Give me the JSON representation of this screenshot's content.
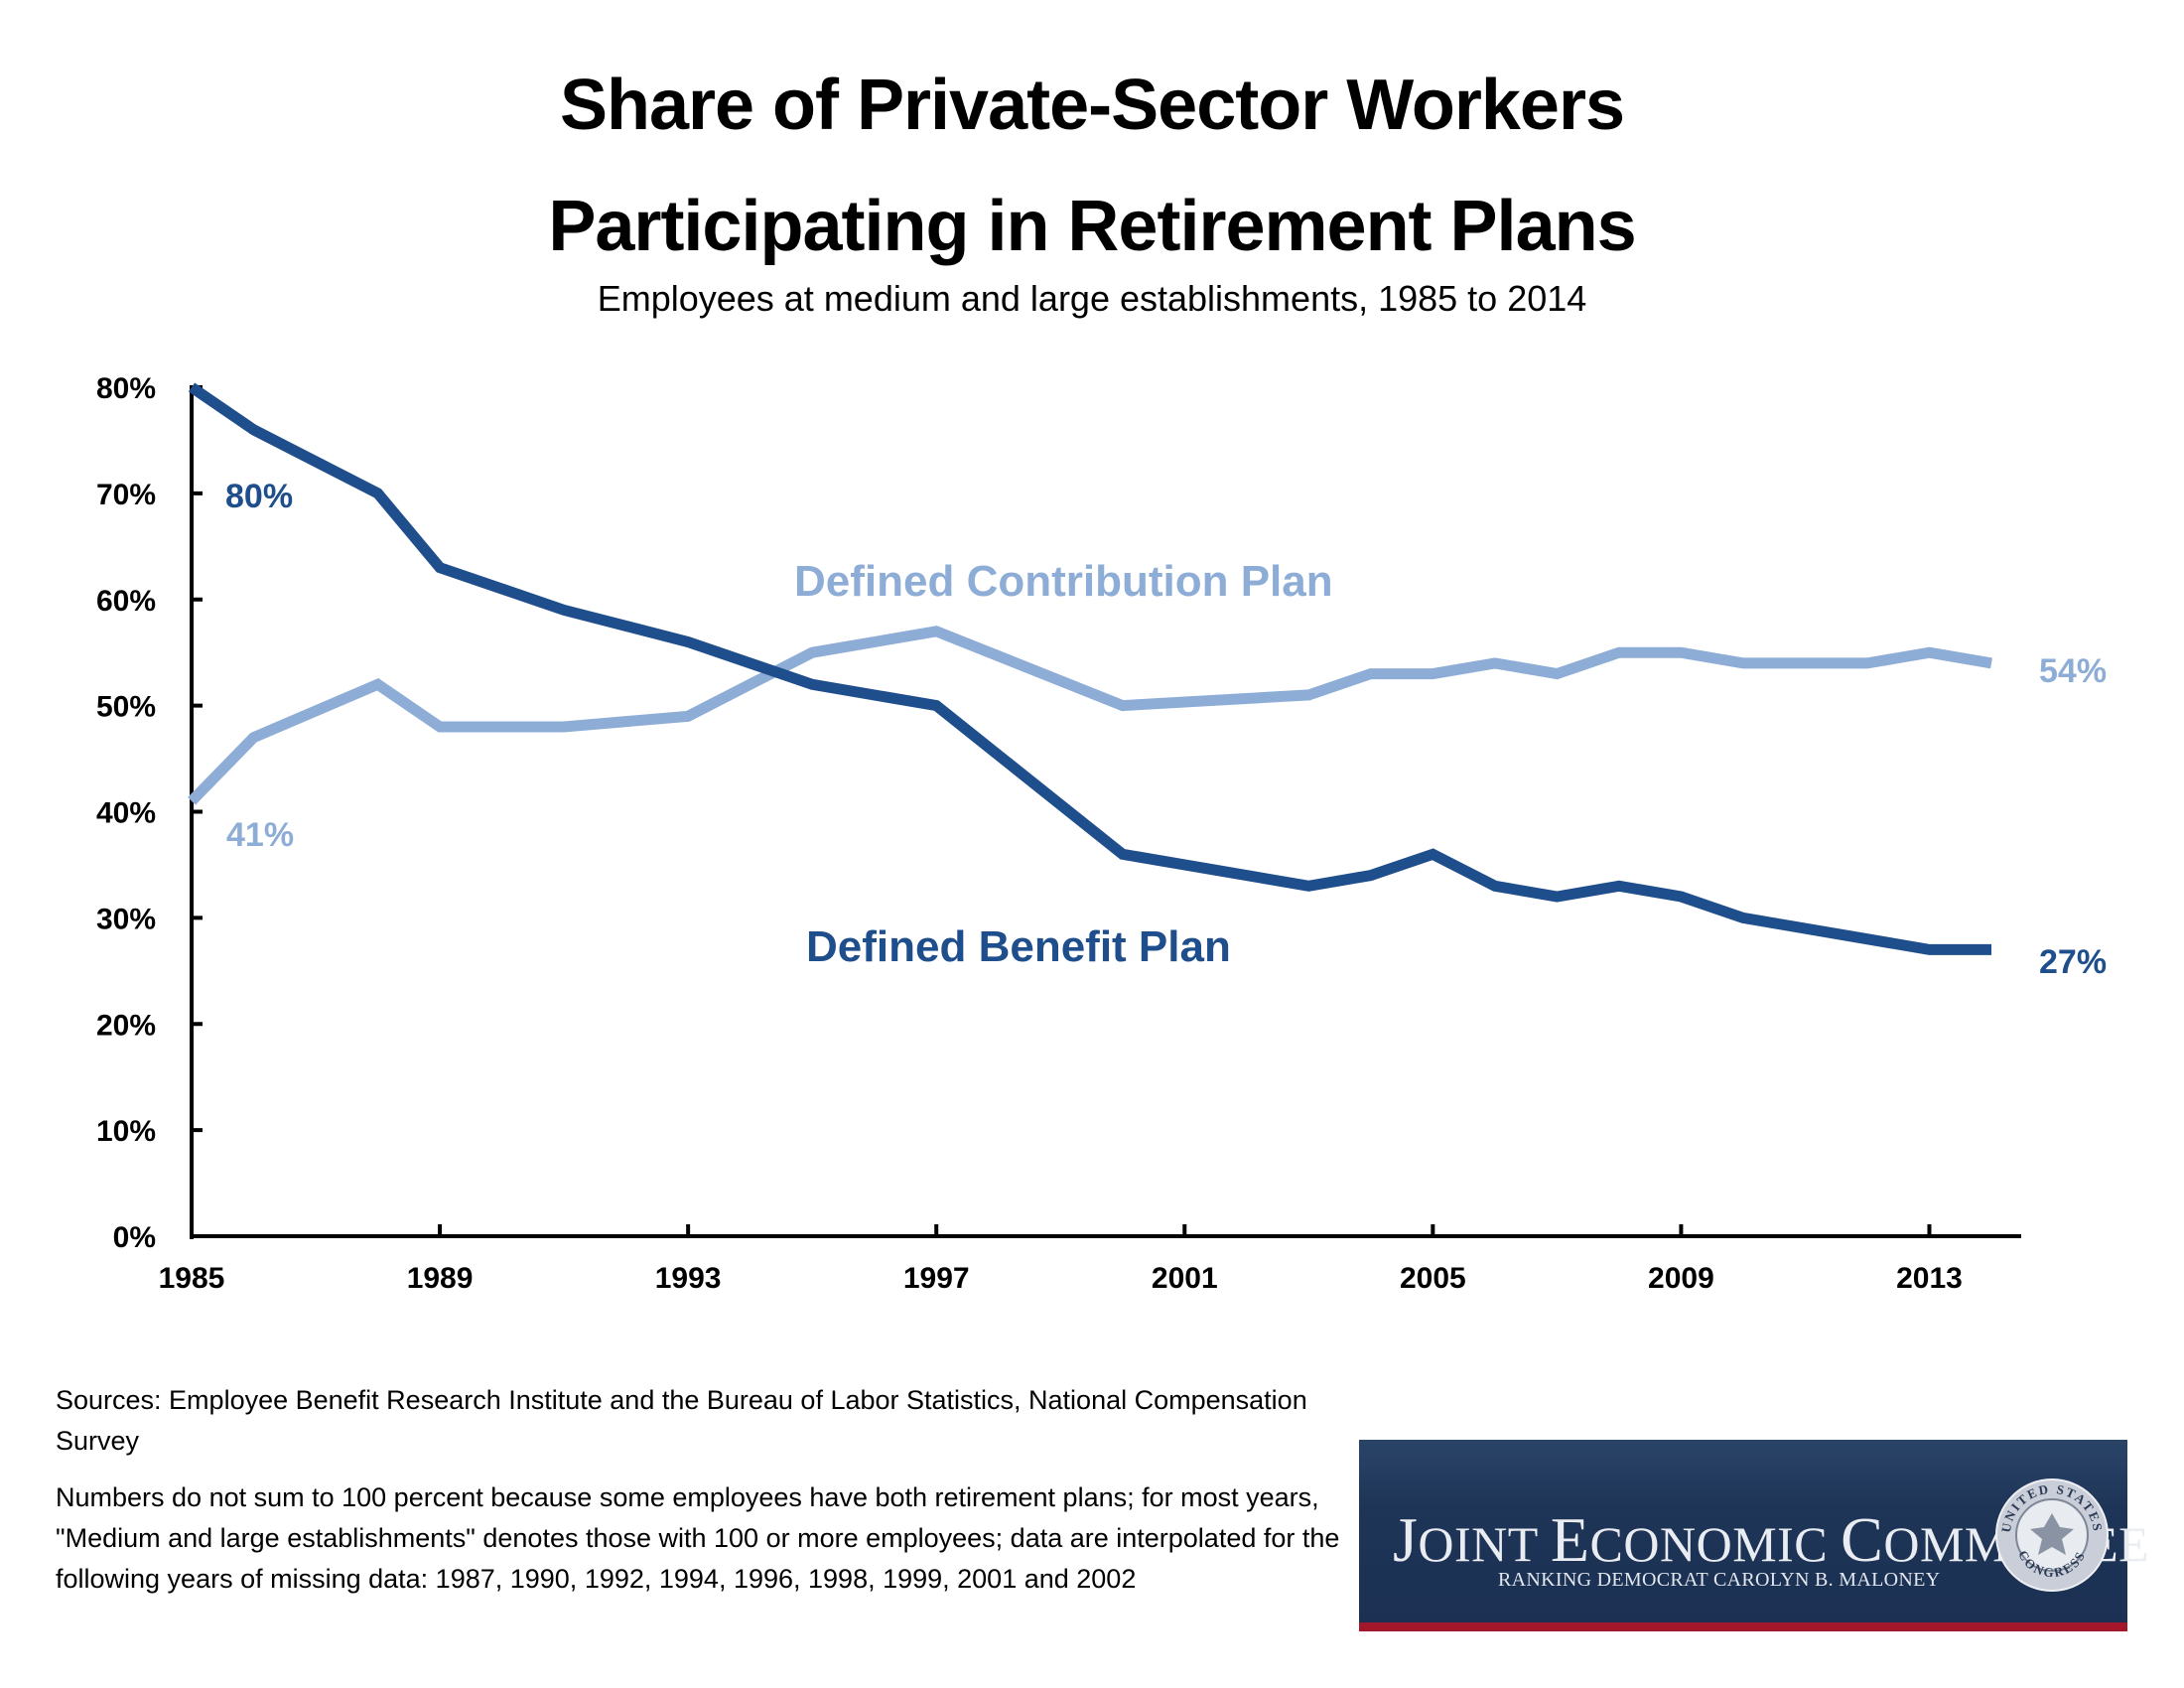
{
  "header": {
    "title_line1": "Share of Private-Sector Workers",
    "title_line2": "Participating in Retirement Plans",
    "subtitle": "Employees at medium and large establishments, 1985 to 2014"
  },
  "chart_data": {
    "type": "line",
    "title": "Share of Private-Sector Workers Participating in Retirement Plans",
    "subtitle": "Employees at medium and large establishments, 1985 to 2014",
    "xlabel": "",
    "ylabel": "",
    "xlim": [
      1985,
      2014
    ],
    "ylim": [
      0,
      80
    ],
    "grid": false,
    "x_ticks": [
      1985,
      1989,
      1993,
      1997,
      2001,
      2005,
      2009,
      2013
    ],
    "x_tick_labels": [
      "1985",
      "1989",
      "1993",
      "1997",
      "2001",
      "2005",
      "2009",
      "2013"
    ],
    "y_ticks": [
      0,
      10,
      20,
      30,
      40,
      50,
      60,
      70,
      80
    ],
    "y_tick_labels": [
      "0%",
      "10%",
      "20%",
      "30%",
      "40%",
      "50%",
      "60%",
      "70%",
      "80%"
    ],
    "series": [
      {
        "name": "Defined Benefit Plan",
        "color": "#1f4e8c",
        "points": [
          [
            1985,
            80
          ],
          [
            1986,
            76
          ],
          [
            1988,
            70
          ],
          [
            1989,
            63
          ],
          [
            1991,
            59
          ],
          [
            1993,
            56
          ],
          [
            1995,
            52
          ],
          [
            1997,
            50
          ],
          [
            2000,
            36
          ],
          [
            2003,
            33
          ],
          [
            2004,
            34
          ],
          [
            2005,
            36
          ],
          [
            2006,
            33
          ],
          [
            2007,
            32
          ],
          [
            2008,
            33
          ],
          [
            2009,
            32
          ],
          [
            2010,
            30
          ],
          [
            2013,
            27
          ],
          [
            2014,
            27
          ]
        ],
        "start_label": "80%",
        "end_label": "27%"
      },
      {
        "name": "Defined Contribution Plan",
        "color": "#8eadd6",
        "points": [
          [
            1985,
            41
          ],
          [
            1986,
            47
          ],
          [
            1988,
            52
          ],
          [
            1989,
            48
          ],
          [
            1991,
            48
          ],
          [
            1993,
            49
          ],
          [
            1995,
            55
          ],
          [
            1997,
            57
          ],
          [
            2000,
            50
          ],
          [
            2003,
            51
          ],
          [
            2004,
            53
          ],
          [
            2005,
            53
          ],
          [
            2006,
            54
          ],
          [
            2007,
            53
          ],
          [
            2008,
            55
          ],
          [
            2009,
            55
          ],
          [
            2010,
            54
          ],
          [
            2012,
            54
          ],
          [
            2013,
            55
          ],
          [
            2014,
            54
          ]
        ],
        "start_label": "41%",
        "end_label": "54%"
      }
    ],
    "annotations": [
      {
        "text": "Defined Contribution Plan",
        "series": "Defined Contribution Plan"
      },
      {
        "text": "Defined Benefit Plan",
        "series": "Defined Benefit Plan"
      }
    ]
  },
  "footer": {
    "sources": "Sources: Employee Benefit Research Institute and the Bureau of Labor Statistics, National Compensation Survey",
    "note": "Numbers do not sum to 100 percent because some employees have both retirement plans; for most years, \"Medium and large establishments\" denotes those with 100 or more employees; data are interpolated for the following years of missing data: 1987, 1990, 1992, 1994, 1996, 1998, 1999, 2001 and 2002"
  },
  "logo": {
    "j": "J",
    "oint": "OINT ",
    "e": "E",
    "conomic": "CONOMIC ",
    "c": "C",
    "ommittee": "OMMITTEE",
    "subtitle": "RANKING DEMOCRAT CAROLYN B. MALONEY",
    "seal_top": "UNITED STATES",
    "seal_bottom": "CONGRESS",
    "colors": {
      "navy": "#1e3557",
      "red": "#a3172a"
    }
  }
}
